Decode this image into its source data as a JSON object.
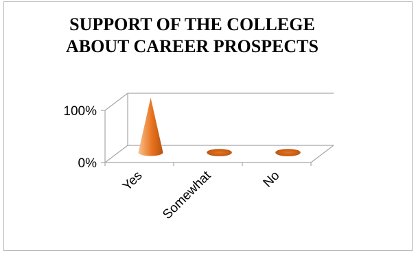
{
  "chart_data": {
    "type": "bar",
    "shape": "cone-3d",
    "title": "SUPPORT OF THE COLLEGE\nABOUT CAREER PROSPECTS",
    "categories": [
      "Yes",
      "Somewhat",
      "No"
    ],
    "values": [
      100,
      0,
      0
    ],
    "value_format": "percent",
    "yticks": [
      "0%",
      "100%"
    ],
    "ylim": [
      0,
      100
    ],
    "grid": true,
    "legend": "none",
    "colors": {
      "cone_light": "#f7c28f",
      "cone_mid": "#e8731f",
      "cone_dark": "#b8520e",
      "axis": "#a6a6a6"
    }
  }
}
